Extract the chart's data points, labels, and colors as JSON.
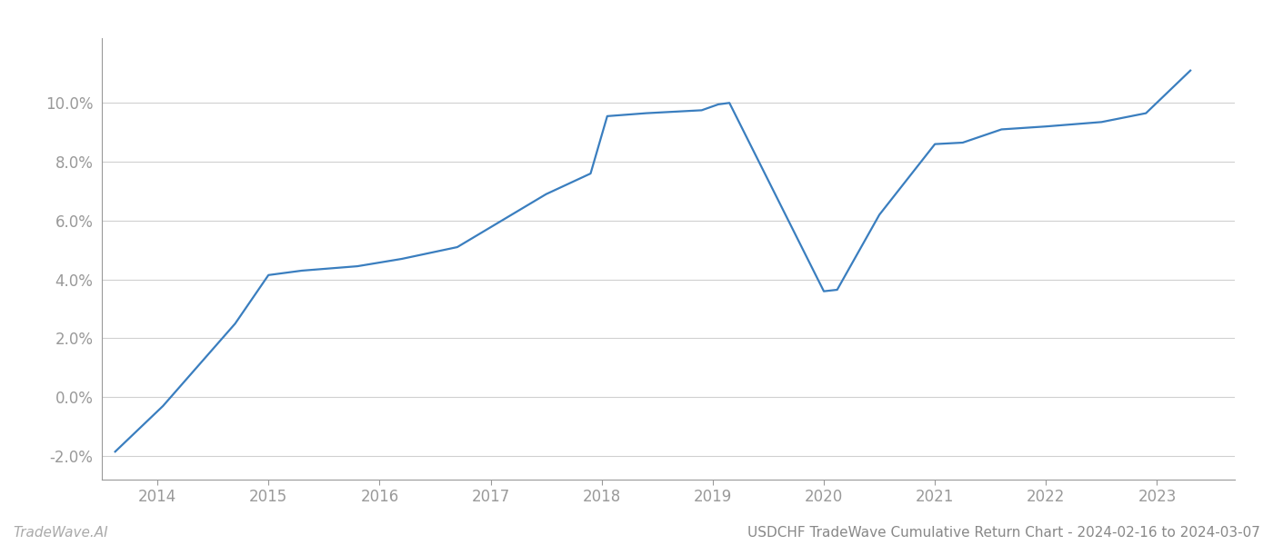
{
  "x_years": [
    2013.62,
    2014.05,
    2014.7,
    2015.0,
    2015.3,
    2015.8,
    2016.2,
    2016.7,
    2017.1,
    2017.5,
    2017.9,
    2018.05,
    2018.4,
    2018.9,
    2019.05,
    2019.15,
    2020.0,
    2020.12,
    2020.5,
    2021.0,
    2021.25,
    2021.6,
    2022.0,
    2022.5,
    2022.9,
    2023.3
  ],
  "y_values": [
    -1.85,
    -0.3,
    2.5,
    4.15,
    4.3,
    4.45,
    4.7,
    5.1,
    6.0,
    6.9,
    7.6,
    9.55,
    9.65,
    9.75,
    9.95,
    10.0,
    3.6,
    3.65,
    6.2,
    8.6,
    8.65,
    9.1,
    9.2,
    9.35,
    9.65,
    11.1
  ],
  "line_color": "#3a7ebf",
  "line_width": 1.6,
  "title": "USDCHF TradeWave Cumulative Return Chart - 2024-02-16 to 2024-03-07",
  "watermark": "TradeWave.AI",
  "ytick_labels": [
    "-2.0%",
    "0.0%",
    "2.0%",
    "4.0%",
    "6.0%",
    "8.0%",
    "10.0%"
  ],
  "ytick_values": [
    -2.0,
    0.0,
    2.0,
    4.0,
    6.0,
    8.0,
    10.0
  ],
  "xtick_values": [
    2014,
    2015,
    2016,
    2017,
    2018,
    2019,
    2020,
    2021,
    2022,
    2023
  ],
  "xlim": [
    2013.5,
    2023.7
  ],
  "ylim": [
    -2.8,
    12.2
  ],
  "background_color": "#ffffff",
  "grid_color": "#d0d0d0",
  "tick_color": "#999999",
  "watermark_color": "#aaaaaa",
  "footer_color": "#888888"
}
